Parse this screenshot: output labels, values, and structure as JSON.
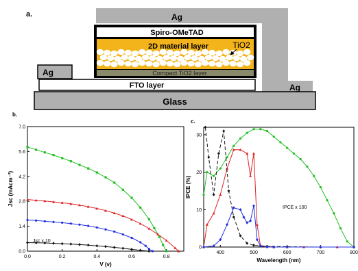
{
  "panel_labels": {
    "a": "a.",
    "b": "b.",
    "c": "c."
  },
  "device": {
    "layers": {
      "ag_top": "Ag",
      "spiro": "Spiro-OMeTAD",
      "material": "2D material layer",
      "tio2": "TiO2",
      "compact": "Compact TiO2 layer",
      "fto": "FTO layer",
      "glass": "Glass",
      "ag_left": "Ag",
      "ag_right": "Ag"
    },
    "colors": {
      "gold": "#f2b31b",
      "grey": "#b0b0b0",
      "compact": "#8a8a6a"
    }
  },
  "chart_data": [
    {
      "type": "line",
      "panel": "b",
      "xlabel": "V (v)",
      "ylabel": "Jsc (mAcm⁻²)",
      "xlim": [
        0.0,
        0.9
      ],
      "ylim": [
        0.0,
        7.0
      ],
      "xticks": [
        "0.0",
        "0.2",
        "0.4",
        "0.6",
        "0.8"
      ],
      "yticks": [
        "0.0",
        "1.4",
        "2.8",
        "4.2",
        "5.6",
        "7.0"
      ],
      "annotations": [
        {
          "text": "Jsc x 10"
        }
      ],
      "series": [
        {
          "color": "#20c020",
          "marker": "square",
          "x": [
            0.0,
            0.05,
            0.1,
            0.15,
            0.2,
            0.25,
            0.3,
            0.35,
            0.4,
            0.45,
            0.5,
            0.55,
            0.6,
            0.65,
            0.7,
            0.73,
            0.76,
            0.78,
            0.8
          ],
          "y": [
            5.85,
            5.7,
            5.55,
            5.4,
            5.23,
            5.05,
            4.85,
            4.65,
            4.42,
            4.15,
            3.85,
            3.45,
            3.0,
            2.45,
            1.8,
            1.3,
            0.8,
            0.35,
            0.0
          ]
        },
        {
          "color": "#e02020",
          "marker": "triangle",
          "x": [
            0.0,
            0.05,
            0.1,
            0.15,
            0.2,
            0.25,
            0.3,
            0.35,
            0.4,
            0.45,
            0.5,
            0.55,
            0.6,
            0.65,
            0.7,
            0.75,
            0.8,
            0.85,
            0.87
          ],
          "y": [
            2.9,
            2.86,
            2.82,
            2.77,
            2.72,
            2.66,
            2.59,
            2.5,
            2.4,
            2.28,
            2.14,
            1.98,
            1.78,
            1.55,
            1.27,
            0.95,
            0.6,
            0.18,
            0.0
          ]
        },
        {
          "color": "#2030e0",
          "marker": "circle",
          "x": [
            0.0,
            0.05,
            0.1,
            0.15,
            0.2,
            0.25,
            0.3,
            0.35,
            0.4,
            0.45,
            0.5,
            0.55,
            0.6,
            0.65,
            0.68,
            0.7,
            0.72
          ],
          "y": [
            1.75,
            1.72,
            1.68,
            1.64,
            1.6,
            1.55,
            1.49,
            1.42,
            1.33,
            1.22,
            1.1,
            0.94,
            0.75,
            0.5,
            0.3,
            0.12,
            0.0
          ]
        },
        {
          "color": "#111111",
          "marker": "diamond",
          "x": [
            0.0,
            0.05,
            0.1,
            0.15,
            0.2,
            0.25,
            0.3,
            0.35,
            0.4,
            0.45,
            0.5,
            0.55,
            0.6,
            0.65,
            0.7
          ],
          "y": [
            0.48,
            0.47,
            0.46,
            0.44,
            0.42,
            0.4,
            0.37,
            0.34,
            0.3,
            0.26,
            0.21,
            0.16,
            0.1,
            0.05,
            0.0
          ]
        }
      ]
    },
    {
      "type": "line",
      "panel": "c",
      "xlabel": "Wavelength (nm)",
      "ylabel": "IPCE (%)",
      "xlim": [
        350,
        800
      ],
      "ylim": [
        0,
        32
      ],
      "xticks": [
        "400",
        "500",
        "600",
        "700",
        "800"
      ],
      "yticks": [
        "0",
        "10",
        "20",
        "30"
      ],
      "annotations": [
        {
          "text": "IPCE x 100"
        }
      ],
      "series": [
        {
          "color": "#20c020",
          "marker": "circle",
          "x": [
            350,
            360,
            380,
            400,
            420,
            440,
            460,
            480,
            500,
            520,
            540,
            560,
            580,
            600,
            620,
            640,
            660,
            680,
            700,
            720,
            740,
            760,
            780,
            800
          ],
          "y": [
            14,
            20,
            19,
            21,
            24,
            27,
            29,
            30.5,
            31.5,
            31.5,
            31,
            29.5,
            28,
            26.5,
            25,
            23.5,
            21.5,
            19,
            16,
            12.5,
            9,
            5,
            1.5,
            0
          ]
        },
        {
          "color": "#e02020",
          "marker": "triangle",
          "x": [
            350,
            360,
            380,
            400,
            420,
            440,
            460,
            480,
            490,
            500,
            510,
            520,
            540,
            560,
            600,
            650,
            700,
            750,
            800
          ],
          "y": [
            0,
            6,
            9,
            14,
            21,
            26,
            26,
            25,
            19,
            25,
            6,
            0.4,
            0.2,
            0,
            0,
            0,
            0,
            0,
            0
          ]
        },
        {
          "color": "#111111",
          "marker": "diamond",
          "dashed": true,
          "x": [
            355,
            365,
            380,
            395,
            410,
            425,
            440,
            460,
            480,
            500,
            520,
            540,
            600,
            700,
            800
          ],
          "y": [
            33,
            24,
            14,
            25,
            31,
            15,
            8,
            3,
            1,
            0.5,
            0.3,
            0.2,
            0.1,
            0,
            0
          ]
        },
        {
          "color": "#2030e0",
          "marker": "diamond",
          "x": [
            350,
            380,
            400,
            420,
            440,
            460,
            470,
            480,
            490,
            500,
            510,
            520,
            540,
            560,
            600,
            700,
            800
          ],
          "y": [
            0,
            0.3,
            2,
            6,
            10.5,
            10,
            8,
            6.5,
            7,
            11,
            2,
            0.3,
            0,
            0,
            0,
            0,
            0
          ]
        }
      ]
    }
  ]
}
